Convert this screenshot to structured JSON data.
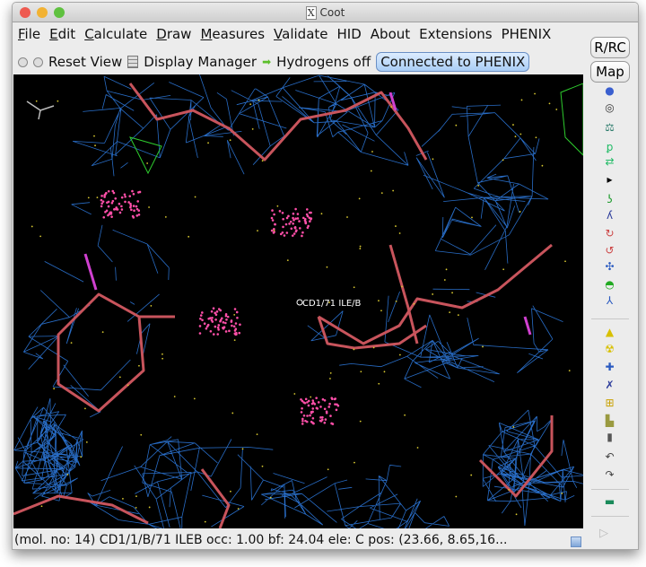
{
  "window": {
    "title": "Coot"
  },
  "menubar": {
    "items": [
      {
        "label": "File",
        "u": "F",
        "rest": "ile"
      },
      {
        "label": "Edit",
        "u": "E",
        "rest": "dit"
      },
      {
        "label": "Calculate",
        "u": "C",
        "rest": "alculate"
      },
      {
        "label": "Draw",
        "u": "D",
        "rest": "raw"
      },
      {
        "label": "Measures",
        "u": "M",
        "rest": "easures"
      },
      {
        "label": "Validate",
        "u": "V",
        "rest": "alidate"
      },
      {
        "label": "HID",
        "u": "",
        "rest": "HID"
      },
      {
        "label": "About",
        "u": "",
        "rest": "About"
      },
      {
        "label": "Extensions",
        "u": "",
        "rest": "Extensions"
      },
      {
        "label": "PHENIX",
        "u": "",
        "rest": "PHENIX"
      }
    ]
  },
  "toolbar": {
    "reset_view": "Reset View",
    "display_manager": "Display Manager",
    "hydrogens": "Hydrogens off",
    "connected": "Connected to PHENIX"
  },
  "rightbar": {
    "rrc": "R/RC",
    "map": "Map"
  },
  "viewport": {
    "atom_label": "CD1/71 ILE/B",
    "colors": {
      "mesh": "#2f7fe8",
      "bonds": "#c8545c",
      "dots": "#ff4fa8",
      "green_mesh": "#2ecc2e"
    }
  },
  "status": {
    "text": "(mol. no: 14)  CD1/1/B/71 ILEB occ:  1.00 bf: 24.04 ele:  C pos: (23.66, 8.65,16..."
  }
}
